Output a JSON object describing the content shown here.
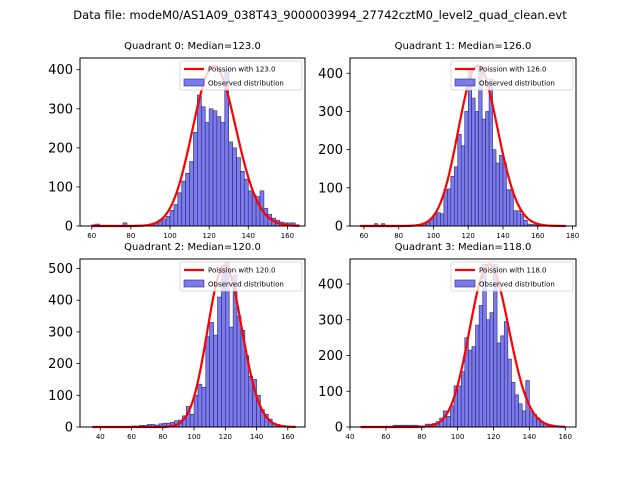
{
  "suptitle": "Data file: modeM0/AS1A09_038T43_9000003994_27742cztM0_level2_quad_clean.evt",
  "colors": {
    "bar_fill": "#7b7bef",
    "bar_edge": "#2a2a6a",
    "poisson_line": "#ff0000"
  },
  "chart_data": [
    {
      "type": "bar",
      "title": "Quadrant 0: Median=123.0",
      "legend": [
        "Poission with 123.0",
        "Observed distribution"
      ],
      "legend_position": "top-right",
      "xlim": [
        54,
        169
      ],
      "ylim": [
        0,
        430
      ],
      "xticks": [
        60,
        80,
        100,
        120,
        140,
        160
      ],
      "yticks": [
        0,
        100,
        200,
        300,
        400
      ],
      "bin_width": 2.0,
      "bins": [
        60,
        62,
        64,
        66,
        68,
        70,
        72,
        74,
        76,
        78,
        80,
        82,
        84,
        86,
        88,
        90,
        92,
        94,
        96,
        98,
        100,
        102,
        104,
        106,
        108,
        110,
        112,
        114,
        116,
        118,
        120,
        122,
        124,
        126,
        128,
        130,
        132,
        134,
        136,
        138,
        140,
        142,
        144,
        146,
        148,
        150,
        152,
        154,
        156,
        158,
        160,
        162,
        164
      ],
      "values": [
        3,
        5,
        2,
        2,
        2,
        2,
        2,
        2,
        8,
        2,
        2,
        2,
        2,
        2,
        3,
        4,
        8,
        15,
        18,
        25,
        40,
        55,
        85,
        115,
        135,
        165,
        240,
        335,
        305,
        265,
        300,
        295,
        280,
        265,
        400,
        215,
        200,
        175,
        140,
        120,
        90,
        80,
        75,
        90,
        45,
        30,
        20,
        15,
        10,
        8,
        8,
        8,
        3
      ],
      "poisson_mean": 123.0,
      "poisson_peak": 410
    },
    {
      "type": "bar",
      "title": "Quadrant 1: Median=126.0",
      "legend": [
        "Poission with 126.0",
        "Observed distribution"
      ],
      "legend_position": "top-right",
      "xlim": [
        52,
        182
      ],
      "ylim": [
        0,
        440
      ],
      "xticks": [
        60,
        80,
        100,
        120,
        140,
        160,
        180
      ],
      "yticks": [
        0,
        100,
        200,
        300,
        400
      ],
      "bin_width": 2.0,
      "bins": [
        58,
        60,
        62,
        64,
        66,
        68,
        70,
        72,
        74,
        76,
        78,
        80,
        82,
        84,
        86,
        88,
        90,
        92,
        94,
        96,
        98,
        100,
        102,
        104,
        106,
        108,
        110,
        112,
        114,
        116,
        118,
        120,
        122,
        124,
        126,
        128,
        130,
        132,
        134,
        136,
        138,
        140,
        142,
        144,
        146,
        148,
        150,
        152,
        154,
        156,
        158,
        160,
        162,
        164,
        166,
        168,
        170,
        172,
        174
      ],
      "values": [
        2,
        2,
        2,
        2,
        6,
        2,
        6,
        2,
        2,
        2,
        2,
        2,
        2,
        2,
        2,
        2,
        2,
        3,
        5,
        10,
        20,
        30,
        35,
        32,
        95,
        97,
        130,
        155,
        240,
        210,
        300,
        410,
        335,
        300,
        410,
        280,
        300,
        385,
        200,
        165,
        185,
        165,
        95,
        95,
        40,
        40,
        30,
        15,
        5,
        4,
        3,
        2,
        2,
        2,
        2,
        2,
        2,
        2,
        2
      ],
      "poisson_mean": 126.0,
      "poisson_peak": 420
    },
    {
      "type": "bar",
      "title": "Quadrant 2: Median=120.0",
      "legend": [
        "Poission with 120.0",
        "Observed distribution"
      ],
      "legend_position": "top-right",
      "xlim": [
        27,
        171
      ],
      "ylim": [
        0,
        530
      ],
      "xticks": [
        40,
        60,
        80,
        100,
        120,
        140,
        160
      ],
      "yticks": [
        0,
        100,
        200,
        300,
        400,
        500
      ],
      "bin_width": 2.5,
      "bins": [
        35,
        37.5,
        40,
        42.5,
        45,
        47.5,
        50,
        52.5,
        55,
        57.5,
        60,
        62.5,
        65,
        67.5,
        70,
        72.5,
        75,
        77.5,
        80,
        82.5,
        85,
        87.5,
        90,
        92.5,
        95,
        97.5,
        100,
        102.5,
        105,
        107.5,
        110,
        112.5,
        115,
        117.5,
        120,
        122.5,
        125,
        127.5,
        130,
        132.5,
        135,
        137.5,
        140,
        142.5,
        145,
        147.5,
        150,
        152.5,
        155,
        157.5,
        160,
        162.5
      ],
      "values": [
        2,
        2,
        2,
        2,
        2,
        2,
        2,
        2,
        2,
        2,
        3,
        3,
        5,
        5,
        8,
        8,
        6,
        10,
        12,
        12,
        15,
        20,
        22,
        35,
        65,
        40,
        100,
        135,
        125,
        285,
        330,
        290,
        410,
        500,
        520,
        315,
        480,
        350,
        305,
        225,
        160,
        150,
        100,
        55,
        40,
        25,
        12,
        8,
        5,
        3,
        2,
        2
      ],
      "poisson_mean": 120.0,
      "poisson_peak": 510
    },
    {
      "type": "bar",
      "title": "Quadrant 3: Median=118.0",
      "legend": [
        "Poission with 118.0",
        "Observed distribution"
      ],
      "legend_position": "top-right",
      "xlim": [
        40,
        166
      ],
      "ylim": [
        0,
        470
      ],
      "xticks": [
        40,
        60,
        80,
        100,
        120,
        140,
        160
      ],
      "yticks": [
        0,
        100,
        200,
        300,
        400
      ],
      "bin_width": 2.0,
      "bins": [
        46,
        48,
        50,
        52,
        54,
        56,
        58,
        60,
        62,
        64,
        66,
        68,
        70,
        72,
        74,
        76,
        78,
        80,
        82,
        84,
        86,
        88,
        90,
        92,
        94,
        96,
        98,
        100,
        102,
        104,
        106,
        108,
        110,
        112,
        114,
        116,
        118,
        120,
        122,
        124,
        126,
        128,
        130,
        132,
        134,
        136,
        138,
        140,
        142,
        144,
        146,
        148,
        150,
        152,
        154,
        156,
        158
      ],
      "values": [
        2,
        2,
        2,
        2,
        2,
        2,
        2,
        2,
        2,
        5,
        5,
        5,
        5,
        5,
        5,
        5,
        3,
        3,
        8,
        8,
        10,
        15,
        25,
        45,
        30,
        60,
        115,
        115,
        155,
        250,
        215,
        225,
        285,
        340,
        455,
        300,
        320,
        455,
        235,
        255,
        295,
        190,
        125,
        90,
        65,
        45,
        130,
        45,
        35,
        25,
        15,
        8,
        4,
        2,
        2,
        2,
        2
      ],
      "poisson_mean": 118.0,
      "poisson_peak": 455
    }
  ]
}
